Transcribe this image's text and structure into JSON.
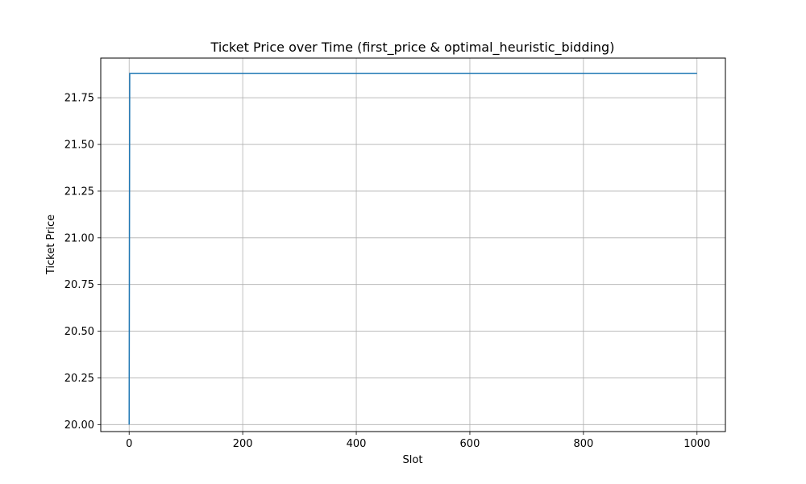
{
  "chart_data": {
    "type": "line",
    "title": "Ticket Price over Time (first_price & optimal_heuristic_bidding)",
    "xlabel": "Slot",
    "ylabel": "Ticket Price",
    "xlim": [
      -50,
      1050
    ],
    "ylim": [
      19.9625,
      21.9625
    ],
    "xticks": [
      0,
      200,
      400,
      600,
      800,
      1000
    ],
    "xtick_labels": [
      "0",
      "200",
      "400",
      "600",
      "800",
      "1000"
    ],
    "yticks": [
      20.0,
      20.25,
      20.5,
      20.75,
      21.0,
      21.25,
      21.5,
      21.75
    ],
    "ytick_labels": [
      "20.00",
      "20.25",
      "20.50",
      "20.75",
      "21.00",
      "21.25",
      "21.50",
      "21.75"
    ],
    "grid": true,
    "series": [
      {
        "color": "#1f77b4",
        "x": [
          0,
          1,
          1000
        ],
        "y": [
          20.0,
          21.88,
          21.88
        ]
      }
    ]
  }
}
